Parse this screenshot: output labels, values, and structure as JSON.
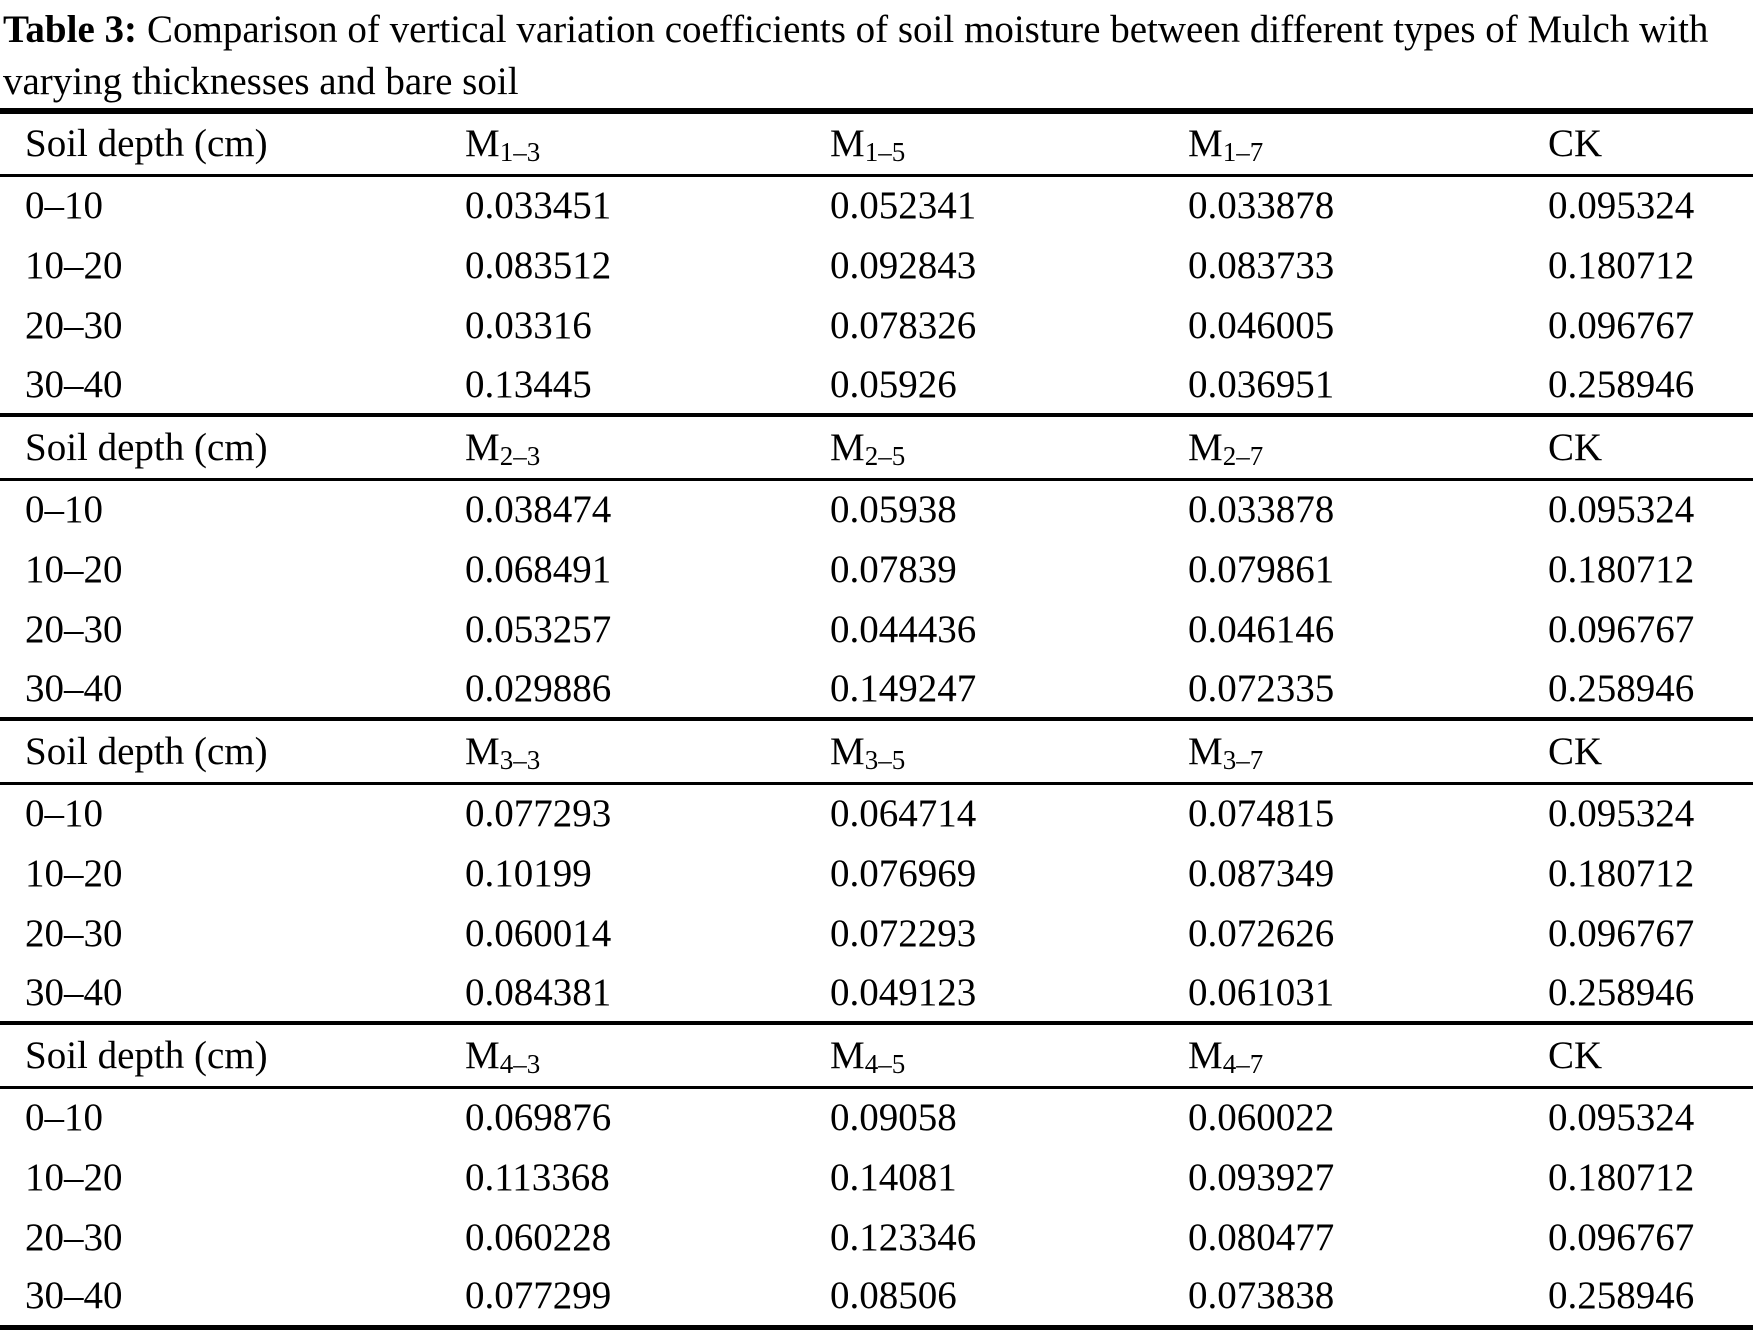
{
  "page": {
    "background_color": "#ffffff",
    "text_color": "#000000"
  },
  "title": {
    "label": "Table 3:",
    "text": "Comparison of vertical variation coefficients of soil moisture between different types of Mulch with varying thicknesses and bare soil"
  },
  "table": {
    "row_header_label": "Soil depth (cm)",
    "control_column_label": "CK",
    "depth_categories": [
      "0–10",
      "10–20",
      "20–30",
      "30–40"
    ],
    "sections": [
      {
        "columns": [
          {
            "text": "Soil depth (cm)"
          },
          {
            "text": "M",
            "sub": "1–3"
          },
          {
            "text": "M",
            "sub": "1–5"
          },
          {
            "text": "M",
            "sub": "1–7"
          },
          {
            "text": "CK"
          }
        ],
        "rows": [
          {
            "depth": "0–10",
            "values": [
              "0.033451",
              "0.052341",
              "0.033878",
              "0.095324"
            ]
          },
          {
            "depth": "10–20",
            "values": [
              "0.083512",
              "0.092843",
              "0.083733",
              "0.180712"
            ]
          },
          {
            "depth": "20–30",
            "values": [
              "0.03316",
              "0.078326",
              "0.046005",
              "0.096767"
            ]
          },
          {
            "depth": "30–40",
            "values": [
              "0.13445",
              "0.05926",
              "0.036951",
              "0.258946"
            ]
          }
        ]
      },
      {
        "columns": [
          {
            "text": "Soil depth (cm)"
          },
          {
            "text": "M",
            "sub": "2–3"
          },
          {
            "text": "M",
            "sub": "2–5"
          },
          {
            "text": "M",
            "sub": "2–7"
          },
          {
            "text": "CK"
          }
        ],
        "rows": [
          {
            "depth": "0–10",
            "values": [
              "0.038474",
              "0.05938",
              "0.033878",
              "0.095324"
            ]
          },
          {
            "depth": "10–20",
            "values": [
              "0.068491",
              "0.07839",
              "0.079861",
              "0.180712"
            ]
          },
          {
            "depth": "20–30",
            "values": [
              "0.053257",
              "0.044436",
              "0.046146",
              "0.096767"
            ]
          },
          {
            "depth": "30–40",
            "values": [
              "0.029886",
              "0.149247",
              "0.072335",
              "0.258946"
            ]
          }
        ]
      },
      {
        "columns": [
          {
            "text": "Soil depth (cm)"
          },
          {
            "text": "M",
            "sub": "3–3"
          },
          {
            "text": "M",
            "sub": "3–5"
          },
          {
            "text": "M",
            "sub": "3–7"
          },
          {
            "text": "CK"
          }
        ],
        "rows": [
          {
            "depth": "0–10",
            "values": [
              "0.077293",
              "0.064714",
              "0.074815",
              "0.095324"
            ]
          },
          {
            "depth": "10–20",
            "values": [
              "0.10199",
              "0.076969",
              "0.087349",
              "0.180712"
            ]
          },
          {
            "depth": "20–30",
            "values": [
              "0.060014",
              "0.072293",
              "0.072626",
              "0.096767"
            ]
          },
          {
            "depth": "30–40",
            "values": [
              "0.084381",
              "0.049123",
              "0.061031",
              "0.258946"
            ]
          }
        ]
      },
      {
        "columns": [
          {
            "text": "Soil depth (cm)"
          },
          {
            "text": "M",
            "sub": "4–3"
          },
          {
            "text": "M",
            "sub": "4–5"
          },
          {
            "text": "M",
            "sub": "4–7"
          },
          {
            "text": "CK"
          }
        ],
        "rows": [
          {
            "depth": "0–10",
            "values": [
              "0.069876",
              "0.09058",
              "0.060022",
              "0.095324"
            ]
          },
          {
            "depth": "10–20",
            "values": [
              "0.113368",
              "0.14081",
              "0.093927",
              "0.180712"
            ]
          },
          {
            "depth": "20–30",
            "values": [
              "0.060228",
              "0.123346",
              "0.080477",
              "0.096767"
            ]
          },
          {
            "depth": "30–40",
            "values": [
              "0.077299",
              "0.08506",
              "0.073838",
              "0.258946"
            ]
          }
        ]
      }
    ]
  }
}
